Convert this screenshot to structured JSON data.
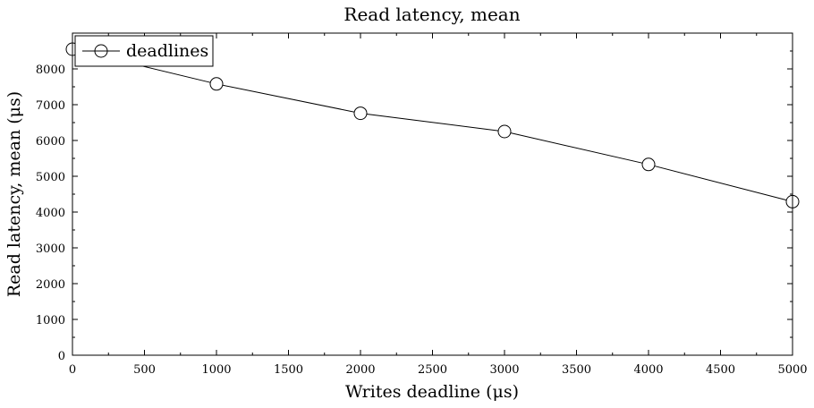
{
  "chart_data": {
    "type": "line",
    "title": "Read latency, mean",
    "xlabel": "Writes deadline (μs)",
    "ylabel": "Read latency, mean (μs)",
    "xlim": [
      0,
      5000
    ],
    "ylim": [
      0,
      9000
    ],
    "xticks": [
      0,
      500,
      1000,
      1500,
      2000,
      2500,
      3000,
      3500,
      4000,
      4500,
      5000
    ],
    "yticks": [
      0,
      1000,
      2000,
      3000,
      4000,
      5000,
      6000,
      7000,
      8000
    ],
    "x_minor_step": 250,
    "y_minor_step": 500,
    "grid": false,
    "legend_position": "top-left",
    "series": [
      {
        "name": "deadlines",
        "marker": "open-circle",
        "color": "#000000",
        "x": [
          0,
          1000,
          2000,
          3000,
          4000,
          5000
        ],
        "y": [
          8550,
          7580,
          6760,
          6250,
          5330,
          4290
        ]
      }
    ]
  }
}
